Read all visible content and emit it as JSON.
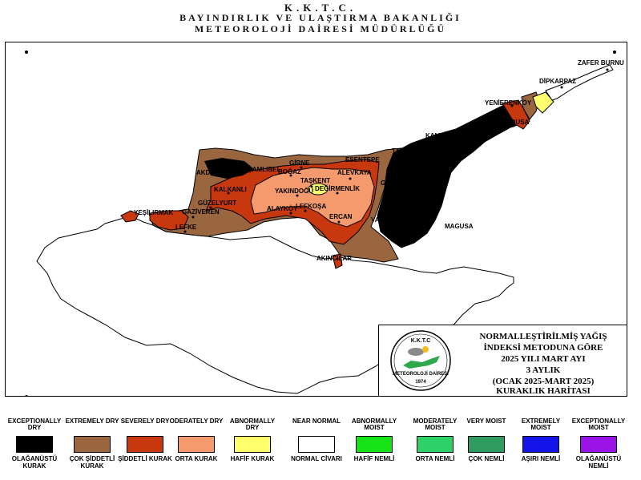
{
  "header": {
    "line1": "K.K.T.C.",
    "line2": "BAYINDIRLIK VE ULAŞTIRMA BAKANLIĞI",
    "line3": "METEOROLOJİ DAİRESİ MÜDÜRLÜĞÜ"
  },
  "places": [
    "ZAFER BURNU",
    "DİPKARPAZ",
    "YENİERENKÖY",
    "YIALOUSA",
    "KANTARA",
    "TATLISU",
    "ESENTEPE",
    "GİRNE",
    "BOĞAZ",
    "TAŞKENT",
    "ALEVKAYA",
    "DEĞİRMENLİK",
    "YAKINDOĞU",
    "KALKANLI",
    "GÜZELYURT",
    "GAZİVEREN",
    "YEŞİLIRMAK",
    "LEFKE",
    "ALAYKÖY",
    "LEFKOŞA",
    "ERCAN",
    "AKINCILAR",
    "GEÇİTKALE",
    "VADİLİ",
    "MAGUSA",
    "AKDENİZ",
    "ÇAMLIBEL"
  ],
  "info": {
    "line1": "NORMALLEŞTİRİLMİŞ YAĞIŞ",
    "line2": "İNDEKSİ METODUNA GÖRE",
    "line3": "2025 YILI MART AYI",
    "line4": "3 AYLIK",
    "line5": "(OCAK 2025-MART 2025)",
    "line6": "KURAKLIK HARİTASI",
    "logo_top": "K.K.T.C",
    "logo_bottom": "METEOROLOJİ DAİRESİ",
    "logo_year": "1974"
  },
  "legend": [
    {
      "en": "EXCEPTIONALLY DRY",
      "tr": "OLAĞANÜSTÜ KURAK",
      "color": "#000000"
    },
    {
      "en": "EXTREMELY DRY",
      "tr": "ÇOK ŞİDDETLİ KURAK",
      "color": "#9a6640"
    },
    {
      "en": "SEVERELY DRY",
      "tr": "ŞİDDETLİ KURAK",
      "color": "#c8380f"
    },
    {
      "en": "ODERATELY DRY",
      "tr": "ORTA KURAK",
      "color": "#f49a6c"
    },
    {
      "en": "ABNORMALLY DRY",
      "tr": "HAFİF KURAK",
      "color": "#ffff6e"
    },
    {
      "en": "NEAR NORMAL",
      "tr": "NORMAL CİVARI",
      "color": "#ffffff"
    },
    {
      "en": "ABNORMALLY MOIST",
      "tr": "HAFİF NEMLİ",
      "color": "#16e216"
    },
    {
      "en": "MODERATELY MOIST",
      "tr": "ORTA NEMLİ",
      "color": "#2ed167"
    },
    {
      "en": "VERY MOIST",
      "tr": "ÇOK NEMLİ",
      "color": "#2f9b5e"
    },
    {
      "en": "EXTREMELY MOIST",
      "tr": "AŞIRI NEMLİ",
      "color": "#1414e8"
    },
    {
      "en": "EXCEPTIONALLY MOIST",
      "tr": "OLAĞANÜSTÜ NEMLİ",
      "color": "#9a14e8"
    }
  ]
}
